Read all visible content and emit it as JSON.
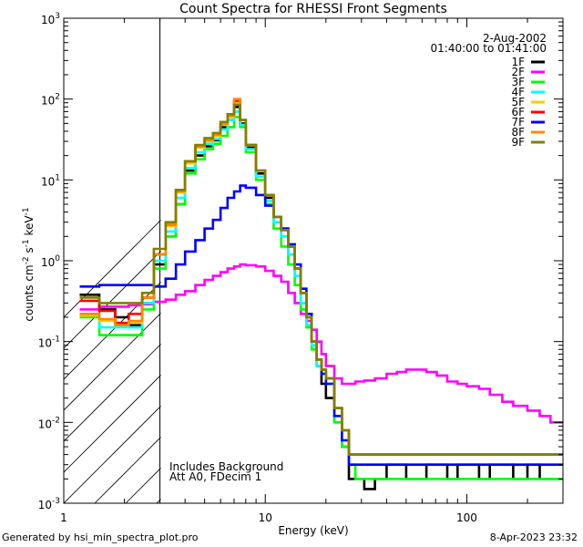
{
  "chart_data": {
    "type": "line",
    "title": "Count Spectra for RHESSI Front Segments",
    "xlabel": "Energy (keV)",
    "ylabel_parts": [
      "counts cm",
      "-2",
      " s",
      "-1",
      " keV",
      "-1"
    ],
    "xscale": "log",
    "yscale": "log",
    "xlim": [
      1,
      300
    ],
    "ylim": [
      0.001,
      1000
    ],
    "x_ticks": [
      {
        "value": 1,
        "label": "1"
      },
      {
        "value": 10,
        "label": "10"
      },
      {
        "value": 100,
        "label": "100"
      }
    ],
    "y_ticks": [
      {
        "value": 0.001,
        "base": "10",
        "exp": "-3"
      },
      {
        "value": 0.01,
        "base": "10",
        "exp": "-2"
      },
      {
        "value": 0.1,
        "base": "10",
        "exp": "-1"
      },
      {
        "value": 1,
        "base": "10",
        "exp": "0"
      },
      {
        "value": 10,
        "base": "10",
        "exp": "1"
      },
      {
        "value": 100,
        "base": "10",
        "exp": "2"
      },
      {
        "value": 1000,
        "base": "10",
        "exp": "3"
      }
    ],
    "shaded_region": {
      "from": 1,
      "to": 3,
      "style": "hatched"
    },
    "date_label": "2-Aug-2002",
    "time_label": "01:40:00 to 01:41:00",
    "annotations": [
      "Includes Background",
      "Att A0, FDecim 1"
    ],
    "energy_bins": [
      1.2,
      1.5,
      1.8,
      2.1,
      2.45,
      2.8,
      3.2,
      3.6,
      4.0,
      4.5,
      5.0,
      5.5,
      6.0,
      6.5,
      7.0,
      7.5,
      8.0,
      9.0,
      10.0,
      11.0,
      12.0,
      13.0,
      14.0,
      15.0,
      16.0,
      17.0,
      18.0,
      19.0,
      20.0,
      22.0,
      24.0,
      26.0,
      28.0,
      31.0,
      35.0,
      40.0,
      45.0,
      50.0,
      56.0,
      63.0,
      71.0,
      80.0,
      90.0,
      100.0,
      115.0,
      130.0,
      150.0,
      170.0,
      200.0,
      230.0,
      260.0,
      300.0
    ],
    "series": [
      {
        "name": "1F",
        "color": "#000000",
        "values": [
          0.38,
          0.25,
          0.2,
          0.16,
          0.3,
          0.9,
          2.0,
          5.0,
          13.0,
          20.0,
          26.0,
          31.0,
          45.0,
          55.0,
          80.0,
          50.0,
          25.0,
          12.0,
          6.0,
          3.5,
          2.5,
          1.5,
          0.8,
          0.4,
          0.2,
          0.1,
          0.05,
          0.03,
          0.02,
          0.015,
          0.005,
          0.002,
          0.002,
          0.0015,
          0.002,
          0.003,
          0.003,
          0.002,
          0.002,
          0.003,
          0.003,
          0.002,
          0.003,
          0.003,
          0.002,
          0.003,
          0.003,
          0.002,
          0.003,
          0.002,
          0.002,
          0.002
        ]
      },
      {
        "name": "2F",
        "color": "#ff00ff",
        "values": [
          0.25,
          0.27,
          0.27,
          0.28,
          0.29,
          0.31,
          0.33,
          0.38,
          0.42,
          0.5,
          0.58,
          0.65,
          0.72,
          0.8,
          0.85,
          0.9,
          0.88,
          0.85,
          0.75,
          0.65,
          0.55,
          0.4,
          0.3,
          0.22,
          0.18,
          0.14,
          0.1,
          0.07,
          0.05,
          0.035,
          0.03,
          0.03,
          0.032,
          0.033,
          0.035,
          0.04,
          0.042,
          0.045,
          0.045,
          0.042,
          0.038,
          0.032,
          0.03,
          0.028,
          0.026,
          0.022,
          0.018,
          0.016,
          0.014,
          0.012,
          0.01,
          0.008
        ]
      },
      {
        "name": "3F",
        "color": "#00ff00",
        "values": [
          0.2,
          0.12,
          0.12,
          0.12,
          0.25,
          0.8,
          2.0,
          5.0,
          12.0,
          18.0,
          24.0,
          28.0,
          35.0,
          45.0,
          60.0,
          45.0,
          22.0,
          10.0,
          5.0,
          2.5,
          1.5,
          0.9,
          0.5,
          0.25,
          0.15,
          0.08,
          0.05,
          0.04,
          0.03,
          0.01,
          0.005,
          0.003,
          0.002,
          0.002,
          0.002,
          0.002,
          0.002,
          0.002,
          0.002,
          0.002,
          0.002,
          0.002,
          0.002,
          0.002,
          0.002,
          0.002,
          0.002,
          0.002,
          0.002,
          0.002,
          0.002,
          0.002
        ]
      },
      {
        "name": "4F",
        "color": "#00ffff",
        "values": [
          0.22,
          0.15,
          0.15,
          0.15,
          0.3,
          1.0,
          2.3,
          6.0,
          14.0,
          22.0,
          28.0,
          32.0,
          42.0,
          55.0,
          70.0,
          48.0,
          24.0,
          11.0,
          5.5,
          3.0,
          2.0,
          1.2,
          0.65,
          0.3,
          0.16,
          0.09,
          0.05,
          0.04,
          0.03,
          0.012,
          0.006,
          0.003,
          0.003,
          0.003,
          0.003,
          0.003,
          0.003,
          0.003,
          0.003,
          0.003,
          0.003,
          0.003,
          0.003,
          0.003,
          0.003,
          0.003,
          0.003,
          0.003,
          0.003,
          0.003,
          0.003,
          0.003
        ]
      },
      {
        "name": "5F",
        "color": "#ffcc00",
        "values": [
          0.21,
          0.18,
          0.16,
          0.17,
          0.35,
          1.2,
          2.7,
          7.0,
          16.0,
          25.0,
          30.0,
          35.0,
          48.0,
          60.0,
          90.0,
          55.0,
          27.0,
          13.0,
          6.5,
          3.5,
          2.4,
          1.5,
          0.8,
          0.4,
          0.2,
          0.1,
          0.06,
          0.045,
          0.035,
          0.015,
          0.008,
          0.004,
          0.004,
          0.004,
          0.004,
          0.004,
          0.004,
          0.004,
          0.004,
          0.004,
          0.004,
          0.004,
          0.004,
          0.004,
          0.004,
          0.004,
          0.004,
          0.004,
          0.004,
          0.004,
          0.004,
          0.004
        ]
      },
      {
        "name": "6F",
        "color": "#ff0000",
        "values": [
          0.32,
          0.24,
          0.17,
          0.22,
          0.35,
          1.2,
          2.8,
          7.5,
          17.0,
          26.0,
          32.0,
          37.0,
          50.0,
          65.0,
          95.0,
          55.0,
          27.0,
          13.0,
          6.5,
          3.5,
          2.4,
          1.5,
          0.8,
          0.4,
          0.2,
          0.1,
          0.06,
          0.045,
          0.035,
          0.015,
          0.008,
          0.004,
          0.004,
          0.004,
          0.004,
          0.004,
          0.004,
          0.004,
          0.004,
          0.004,
          0.004,
          0.004,
          0.004,
          0.004,
          0.004,
          0.004,
          0.004,
          0.004,
          0.004,
          0.004,
          0.004,
          0.004
        ]
      },
      {
        "name": "7F",
        "color": "#0000ff",
        "values": [
          0.48,
          0.5,
          0.5,
          0.5,
          0.5,
          0.48,
          0.6,
          0.9,
          1.3,
          1.8,
          2.5,
          3.2,
          4.5,
          6.0,
          7.2,
          8.5,
          8.0,
          6.5,
          4.8,
          3.5,
          2.5,
          1.6,
          0.9,
          0.45,
          0.22,
          0.1,
          0.06,
          0.04,
          0.03,
          0.012,
          0.006,
          0.003,
          0.003,
          0.003,
          0.003,
          0.003,
          0.003,
          0.003,
          0.003,
          0.003,
          0.003,
          0.003,
          0.003,
          0.003,
          0.003,
          0.003,
          0.003,
          0.003,
          0.003,
          0.003,
          0.003,
          0.003
        ]
      },
      {
        "name": "8F",
        "color": "#ff8800",
        "values": [
          0.22,
          0.19,
          0.16,
          0.18,
          0.35,
          1.2,
          2.8,
          7.2,
          17.0,
          26.0,
          31.0,
          36.0,
          49.0,
          62.0,
          100.0,
          55.0,
          27.0,
          13.0,
          6.5,
          3.5,
          2.4,
          1.5,
          0.8,
          0.4,
          0.2,
          0.1,
          0.06,
          0.045,
          0.035,
          0.015,
          0.008,
          0.004,
          0.004,
          0.004,
          0.004,
          0.004,
          0.004,
          0.004,
          0.004,
          0.004,
          0.004,
          0.004,
          0.004,
          0.004,
          0.004,
          0.004,
          0.004,
          0.004,
          0.004,
          0.004,
          0.004,
          0.004
        ]
      },
      {
        "name": "9F",
        "color": "#808000",
        "values": [
          0.35,
          0.3,
          0.3,
          0.3,
          0.4,
          1.4,
          3.0,
          7.5,
          17.0,
          27.0,
          33.0,
          38.0,
          52.0,
          65.0,
          85.0,
          55.0,
          27.0,
          13.0,
          6.5,
          3.5,
          2.4,
          1.5,
          0.8,
          0.4,
          0.2,
          0.1,
          0.06,
          0.045,
          0.035,
          0.015,
          0.008,
          0.004,
          0.004,
          0.004,
          0.004,
          0.004,
          0.004,
          0.004,
          0.004,
          0.004,
          0.004,
          0.004,
          0.004,
          0.004,
          0.004,
          0.004,
          0.004,
          0.004,
          0.004,
          0.004,
          0.004,
          0.004
        ]
      }
    ]
  },
  "footer": {
    "generated": "Generated by hsi_min_spectra_plot.pro",
    "timestamp": "8-Apr-2023 23:32"
  }
}
